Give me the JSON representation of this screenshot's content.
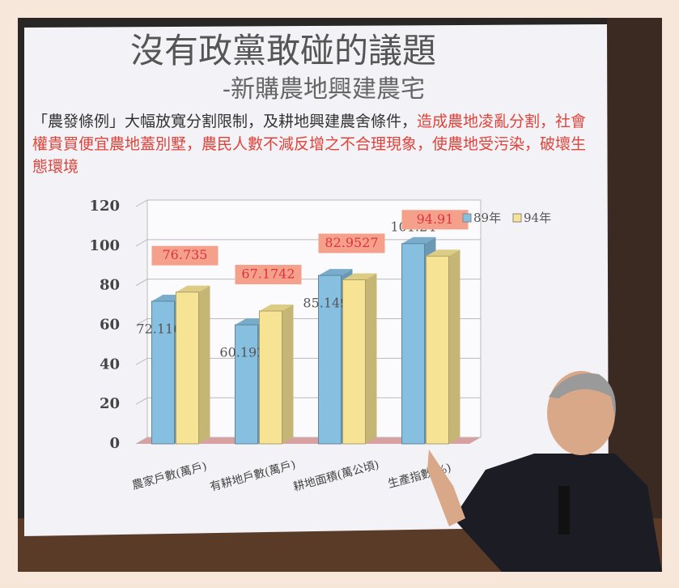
{
  "chart_data": {
    "type": "bar",
    "title": "沒有政黨敢碰的議題",
    "subtitle": "-新購農地興建農宅",
    "body": [
      "「農發條例」大幅放寬分割限制，及耕地興建農舍條件，",
      "造成農地凌亂分割，社會權貴買便宜農地蓋別墅，農民人數不減反增之不合理現象，使農地受污染，破壞生態環境"
    ],
    "categories": [
      "農家戶數(萬戶)",
      "有耕地戶數(萬戶)",
      "耕地面積(萬公頃)",
      "生產指數(%)"
    ],
    "series": [
      {
        "name": "89年",
        "color": "#86bfe0",
        "values": [
          72.1161,
          60.1922,
          85.1495,
          101.24
        ]
      },
      {
        "name": "94年",
        "color": "#f6e394",
        "values": [
          76.735,
          67.1742,
          82.9527,
          94.91
        ]
      }
    ],
    "ylim": [
      0,
      120
    ],
    "yticks": [
      0,
      20,
      40,
      60,
      80,
      100,
      120
    ],
    "grid": true
  }
}
